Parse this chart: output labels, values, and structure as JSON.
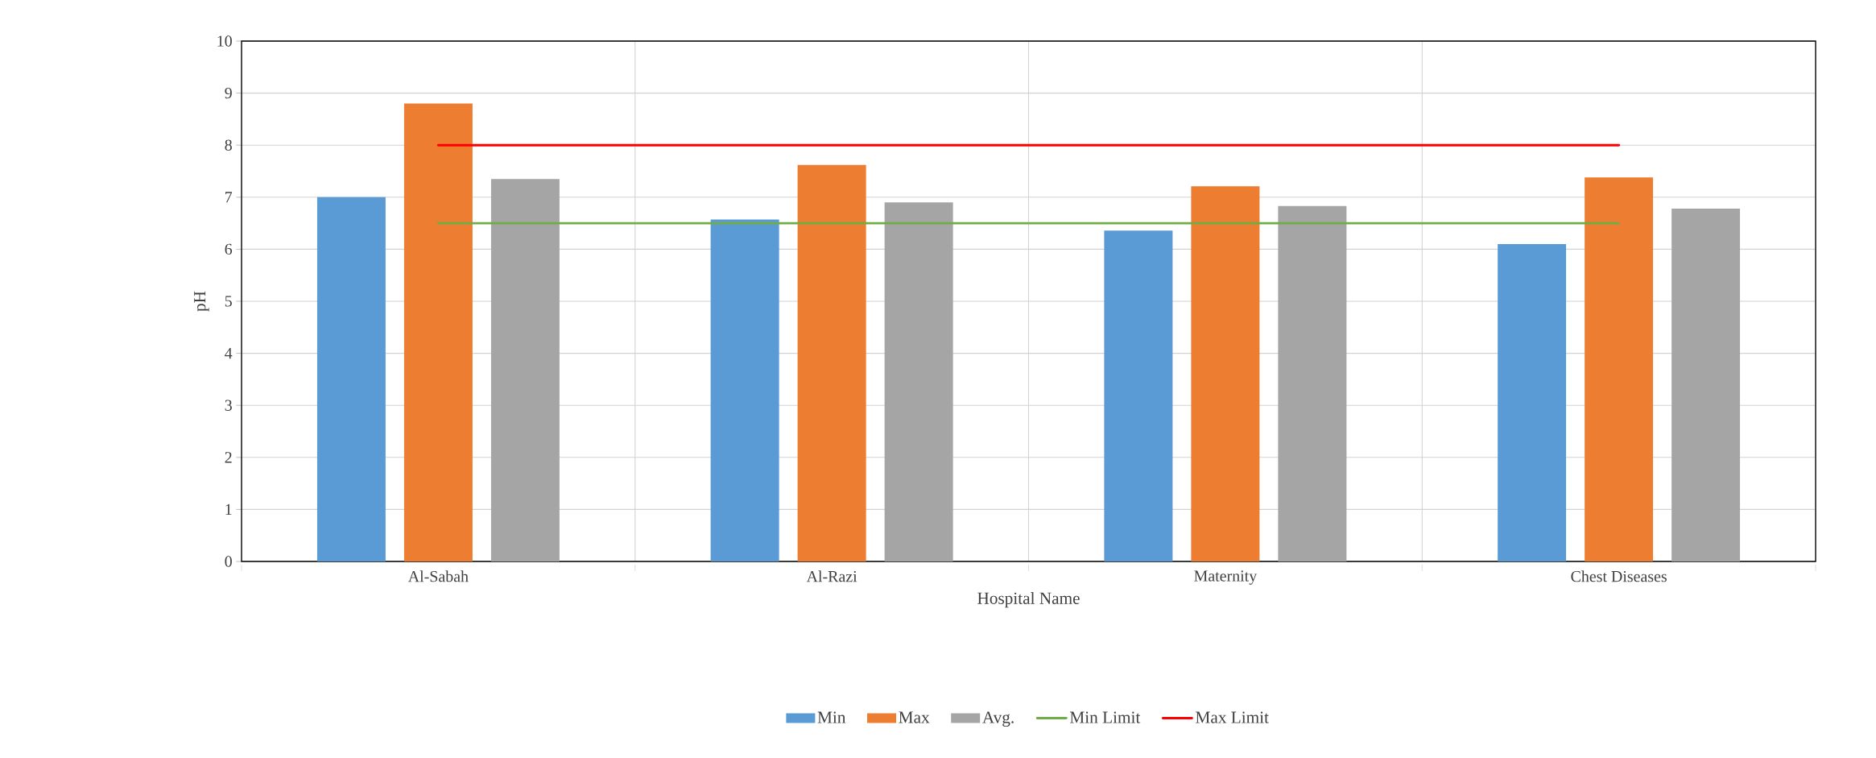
{
  "chart_data": {
    "type": "bar",
    "xlabel": "Hospital Name",
    "ylabel": "pH",
    "categories": [
      "Al-Sabah",
      "Al-Razi",
      "Maternity",
      "Chest Diseases"
    ],
    "series": [
      {
        "name": "Min",
        "color": "#5b9bd5",
        "values": [
          7.0,
          6.57,
          6.36,
          6.1
        ]
      },
      {
        "name": "Max",
        "color": "#ed7d31",
        "values": [
          8.8,
          7.62,
          7.21,
          7.38
        ]
      },
      {
        "name": "Avg.",
        "color": "#a5a5a5",
        "values": [
          7.35,
          6.9,
          6.83,
          6.78
        ]
      },
      {
        "name": "Min Limit",
        "type": "line",
        "color": "#70ad47",
        "values": [
          6.5,
          6.5,
          6.5,
          6.5
        ]
      },
      {
        "name": "Max Limit",
        "type": "line",
        "color": "#ff0000",
        "values": [
          8,
          8,
          8,
          8
        ]
      }
    ],
    "ylim": [
      0,
      10
    ],
    "yticks": [
      0,
      1,
      2,
      3,
      4,
      5,
      6,
      7,
      8,
      9,
      10
    ],
    "grid": true,
    "legend": "bottom",
    "marker": "none",
    "line_style": "solid"
  }
}
